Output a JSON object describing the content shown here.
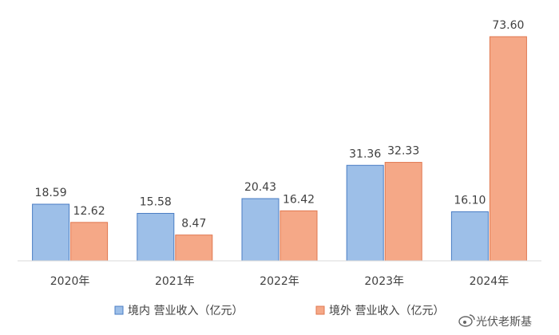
{
  "chart_data": {
    "type": "bar",
    "categories": [
      "2020年",
      "2021年",
      "2022年",
      "2023年",
      "2024年"
    ],
    "series": [
      {
        "name": "境内 营业收入（亿元）",
        "values": [
          18.59,
          15.58,
          20.43,
          31.36,
          16.1
        ],
        "color": "#9dbfe8",
        "stroke": "#4a7dc4"
      },
      {
        "name": "境外 营业收入（亿元）",
        "values": [
          12.62,
          8.47,
          16.42,
          32.33,
          73.6
        ],
        "color": "#f5a887",
        "stroke": "#e0774f"
      }
    ],
    "ylim": [
      0,
      80
    ],
    "grid": false,
    "legend_position": "bottom"
  },
  "watermark": "光伏老斯基"
}
